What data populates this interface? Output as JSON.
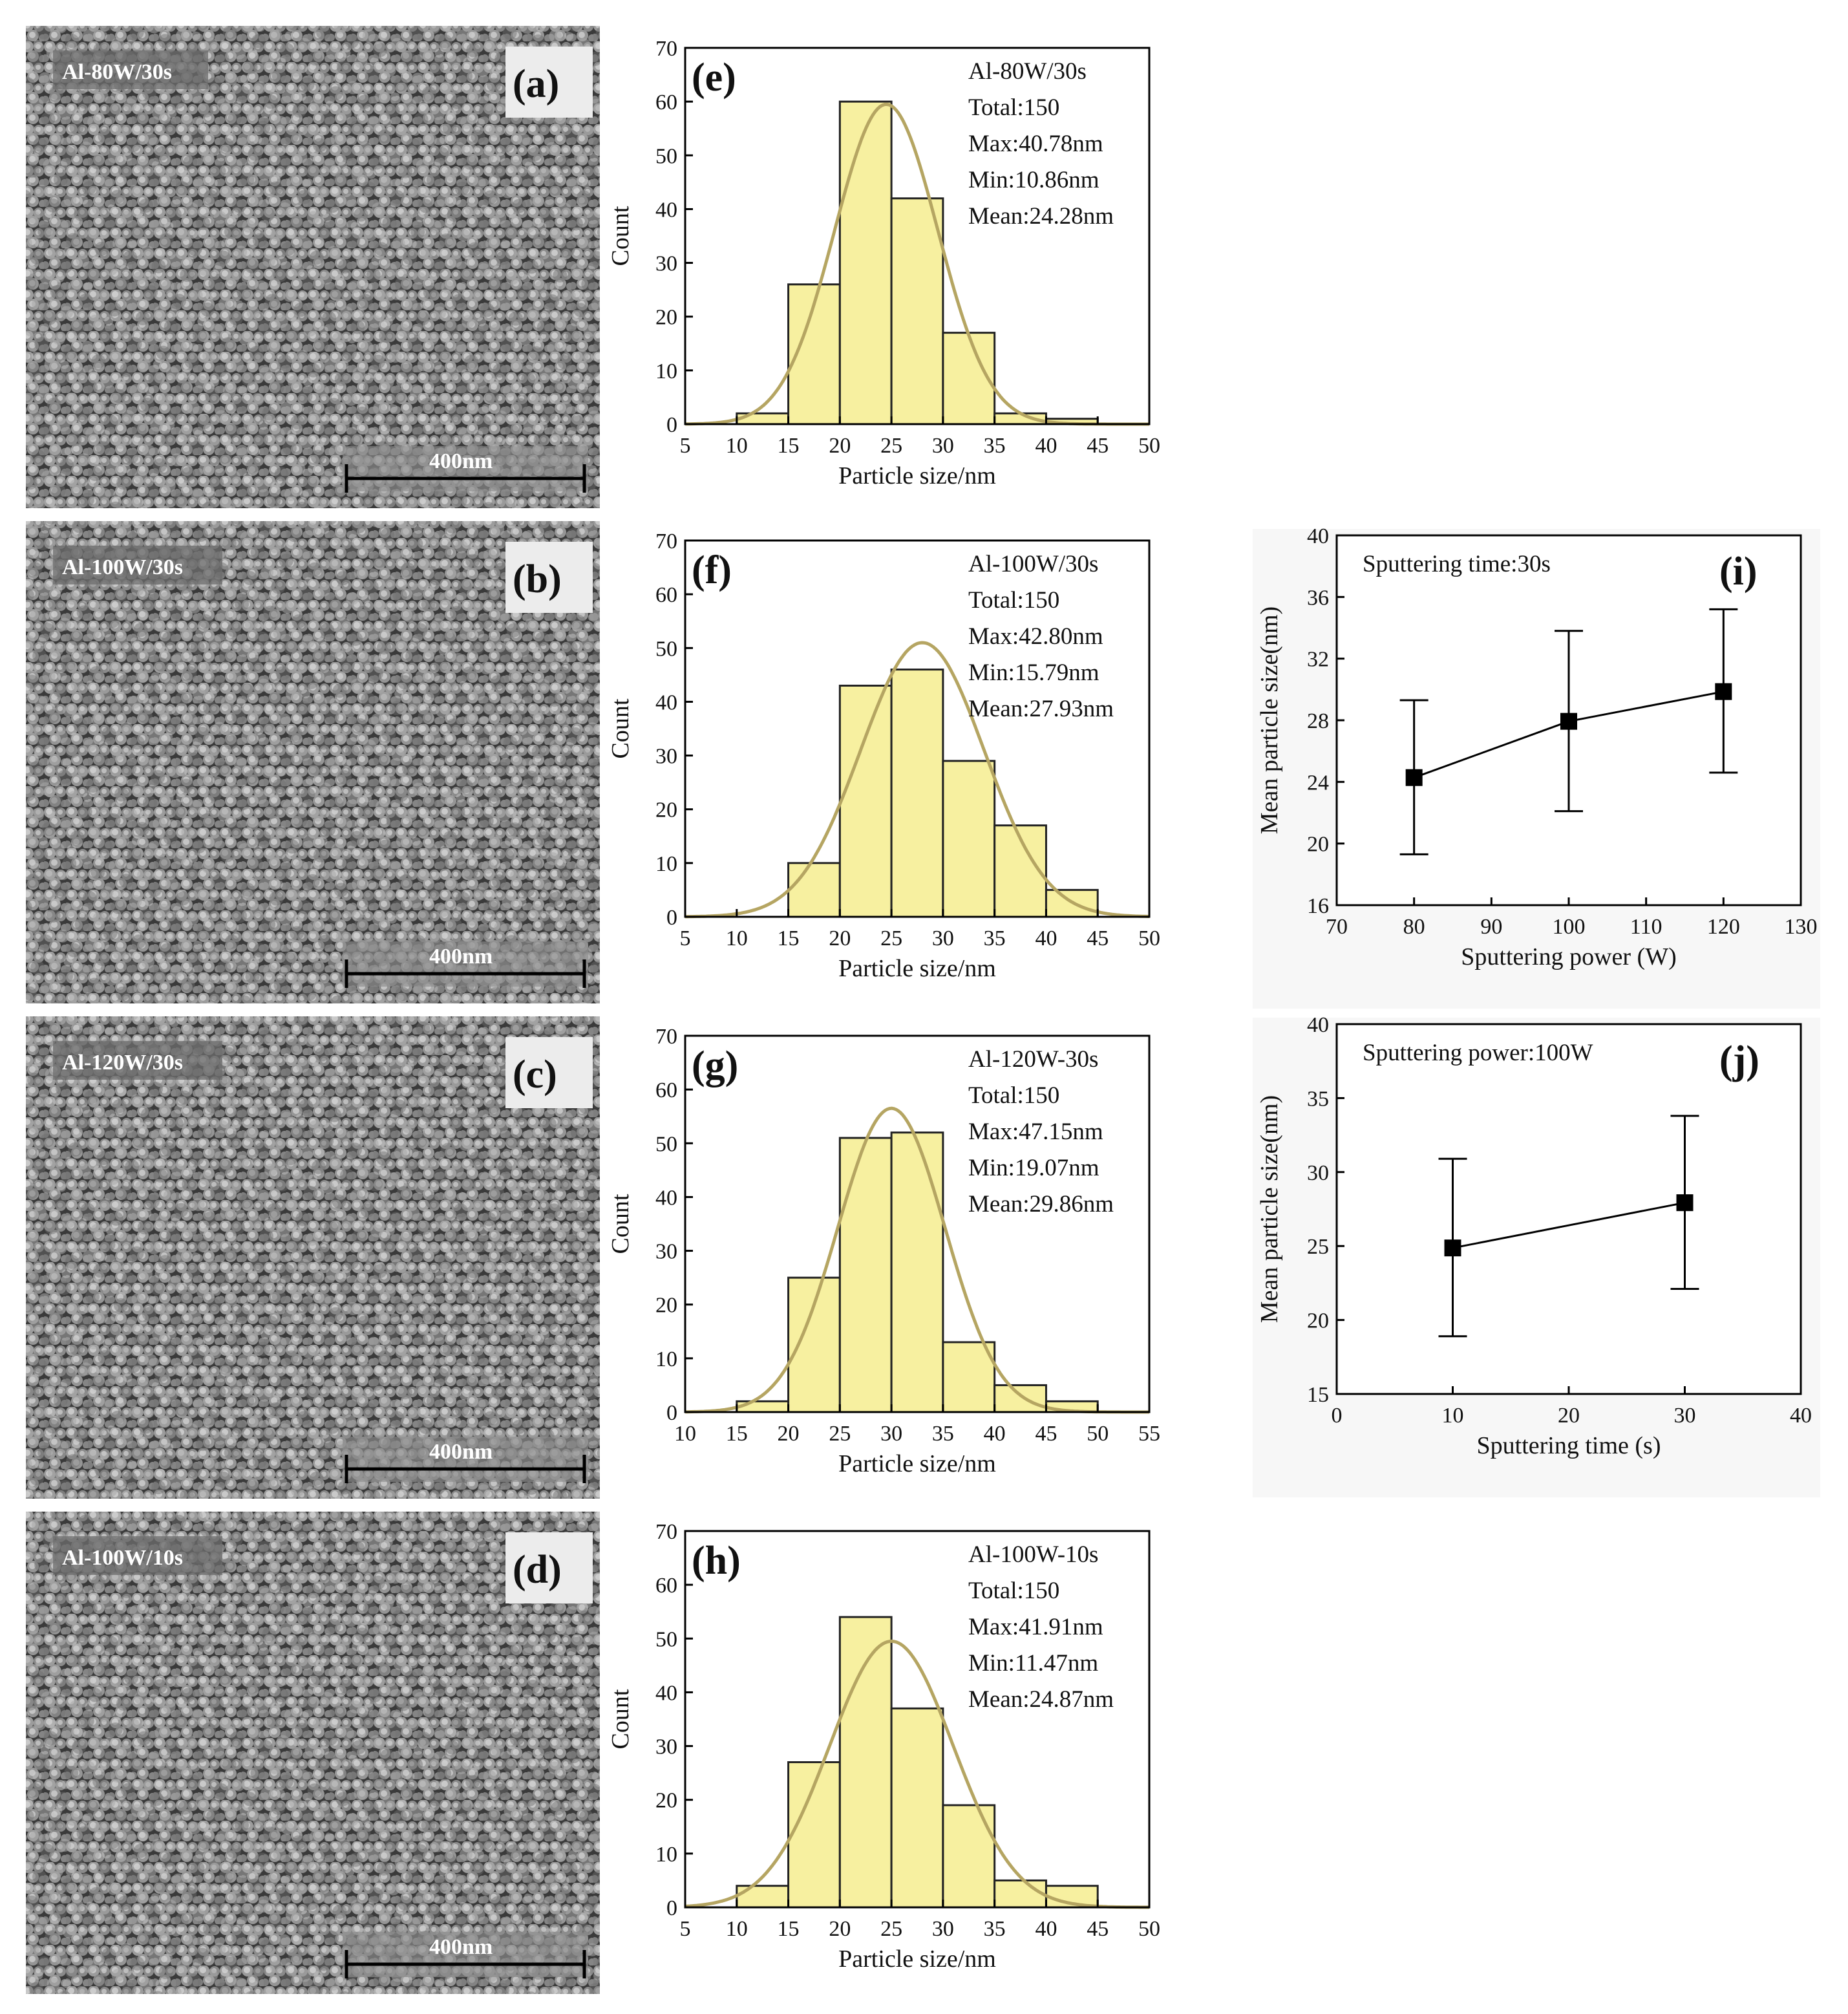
{
  "sem_panels": [
    {
      "letter": "(a)",
      "sample": "Al-80W/30s",
      "scale": "400nm"
    },
    {
      "letter": "(b)",
      "sample": "Al-100W/30s",
      "scale": "400nm"
    },
    {
      "letter": "(c)",
      "sample": "Al-120W/30s",
      "scale": "400nm"
    },
    {
      "letter": "(d)",
      "sample": "Al-100W/10s",
      "scale": "400nm"
    }
  ],
  "colors": {
    "bar_fill": "#f7f0a0",
    "bar_stroke": "#222222",
    "fit_curve": "#b5a562",
    "sem_dark": "#2b2b2b",
    "sem_light": "#b8b8b8"
  },
  "chart_data": [
    {
      "type": "bar",
      "letter": "(e)",
      "notes": [
        "Al-80W/30s",
        "Total:150",
        "Max:40.78nm",
        "Min:10.86nm",
        "Mean:24.28nm"
      ],
      "xlabel": "Particle size/nm",
      "ylabel": "Count",
      "xlim": [
        5,
        50
      ],
      "ylim": [
        0,
        70
      ],
      "xticks": [
        5,
        10,
        15,
        20,
        25,
        30,
        35,
        40,
        45,
        50
      ],
      "yticks": [
        0,
        10,
        20,
        30,
        40,
        50,
        60,
        70
      ],
      "bin_edges": [
        10,
        15,
        20,
        25,
        30,
        35,
        40,
        45
      ],
      "counts": [
        2,
        26,
        60,
        42,
        17,
        2,
        1
      ],
      "fit": {
        "type": "gaussian",
        "mean": 24.5,
        "sigma": 5.0,
        "peak": 59.5
      }
    },
    {
      "type": "bar",
      "letter": "(f)",
      "notes": [
        "Al-100W/30s",
        "Total:150",
        "Max:42.80nm",
        "Min:15.79nm",
        "Mean:27.93nm"
      ],
      "xlabel": "Particle size/nm",
      "ylabel": "Count",
      "xlim": [
        5,
        50
      ],
      "ylim": [
        0,
        70
      ],
      "xticks": [
        5,
        10,
        15,
        20,
        25,
        30,
        35,
        40,
        45,
        50
      ],
      "yticks": [
        0,
        10,
        20,
        30,
        40,
        50,
        60,
        70
      ],
      "bin_edges": [
        15,
        20,
        25,
        30,
        35,
        40,
        45
      ],
      "counts": [
        10,
        43,
        46,
        29,
        17,
        5
      ],
      "fit": {
        "type": "gaussian",
        "mean": 28.0,
        "sigma": 6.0,
        "peak": 51
      }
    },
    {
      "type": "bar",
      "letter": "(g)",
      "notes": [
        "Al-120W-30s",
        "Total:150",
        "Max:47.15nm",
        "Min:19.07nm",
        "Mean:29.86nm"
      ],
      "xlabel": "Particle size/nm",
      "ylabel": "Count",
      "xlim": [
        10,
        55
      ],
      "ylim": [
        0,
        70
      ],
      "xticks": [
        10,
        15,
        20,
        25,
        30,
        35,
        40,
        45,
        50,
        55
      ],
      "yticks": [
        0,
        10,
        20,
        30,
        40,
        50,
        60,
        70
      ],
      "bin_edges": [
        15,
        20,
        25,
        30,
        35,
        40,
        45,
        50
      ],
      "counts": [
        2,
        25,
        51,
        52,
        13,
        5,
        2
      ],
      "fit": {
        "type": "gaussian",
        "mean": 30.0,
        "sigma": 5.2,
        "peak": 56.5
      }
    },
    {
      "type": "bar",
      "letter": "(h)",
      "notes": [
        "Al-100W-10s",
        "Total:150",
        "Max:41.91nm",
        "Min:11.47nm",
        "Mean:24.87nm"
      ],
      "xlabel": "Particle size/nm",
      "ylabel": "Count",
      "xlim": [
        5,
        50
      ],
      "ylim": [
        0,
        70
      ],
      "xticks": [
        5,
        10,
        15,
        20,
        25,
        30,
        35,
        40,
        45,
        50
      ],
      "yticks": [
        0,
        10,
        20,
        30,
        40,
        50,
        60,
        70
      ],
      "bin_edges": [
        10,
        15,
        20,
        25,
        30,
        35,
        40,
        45
      ],
      "counts": [
        4,
        27,
        54,
        37,
        19,
        5,
        4
      ],
      "fit": {
        "type": "gaussian",
        "mean": 25.0,
        "sigma": 6.0,
        "peak": 49.5
      }
    },
    {
      "type": "scatter",
      "letter": "(i)",
      "note": "Sputtering time:30s",
      "xlabel": "Sputtering power (W)",
      "ylabel": "Mean particle size(nm)",
      "xlim": [
        70,
        130
      ],
      "ylim": [
        16,
        40
      ],
      "xticks": [
        70,
        80,
        90,
        100,
        110,
        120,
        130
      ],
      "yticks": [
        16,
        20,
        24,
        28,
        32,
        36,
        40
      ],
      "x": [
        80,
        100,
        120
      ],
      "y": [
        24.28,
        27.93,
        29.86
      ],
      "err_low": [
        19.3,
        22.1,
        24.6
      ],
      "err_high": [
        29.3,
        33.8,
        35.2
      ]
    },
    {
      "type": "scatter",
      "letter": "(j)",
      "note": "Sputtering power:100W",
      "xlabel": "Sputtering time (s)",
      "ylabel": "Mean particle size(nm)",
      "xlim": [
        0,
        40
      ],
      "ylim": [
        15,
        40
      ],
      "xticks": [
        0,
        10,
        20,
        30,
        40
      ],
      "yticks": [
        15,
        20,
        25,
        30,
        35,
        40
      ],
      "x": [
        10,
        30
      ],
      "y": [
        24.87,
        27.93
      ],
      "err_low": [
        18.9,
        22.1
      ],
      "err_high": [
        30.9,
        33.8
      ]
    }
  ]
}
